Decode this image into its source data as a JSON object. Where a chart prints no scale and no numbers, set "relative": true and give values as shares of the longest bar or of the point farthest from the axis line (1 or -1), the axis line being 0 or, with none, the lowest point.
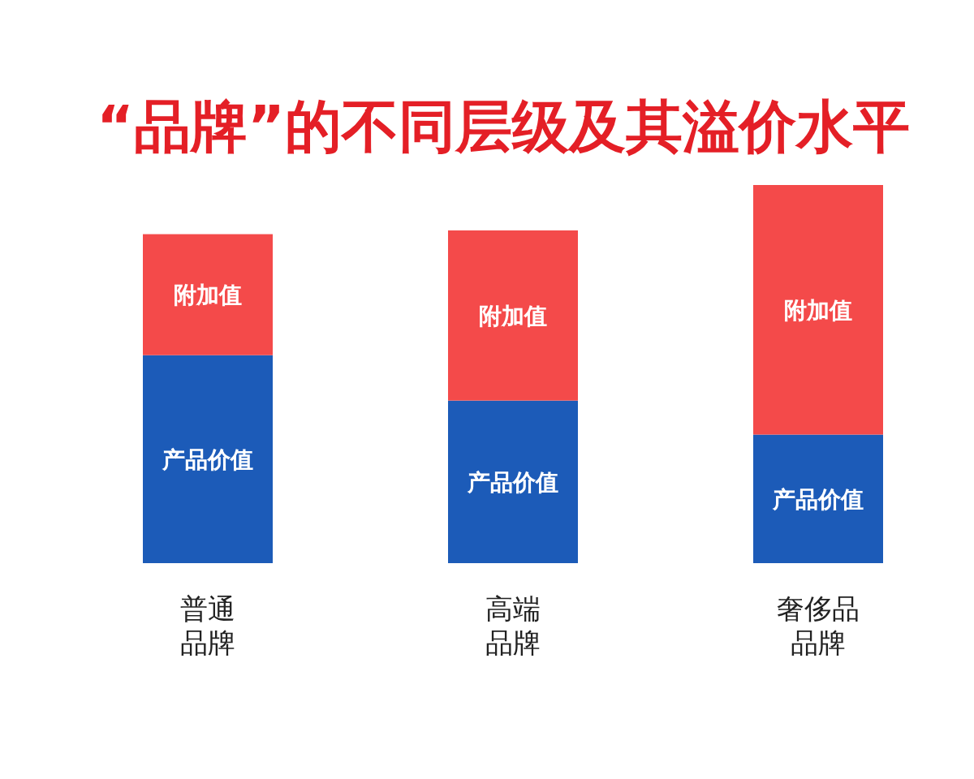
{
  "chart_data": {
    "type": "bar",
    "title": "“品牌”的不同层级及其溢价水平",
    "categories": [
      "普通品牌",
      "高端品牌",
      "奢侈品品牌"
    ],
    "stacked": true,
    "relative": true,
    "series": [
      {
        "name": "产品价值",
        "color": "#1c5bb8",
        "values": [
          0.55,
          0.43,
          0.34
        ]
      },
      {
        "name": "附加值",
        "color": "#f44a4a",
        "values": [
          0.32,
          0.45,
          0.66
        ]
      }
    ]
  }
}
